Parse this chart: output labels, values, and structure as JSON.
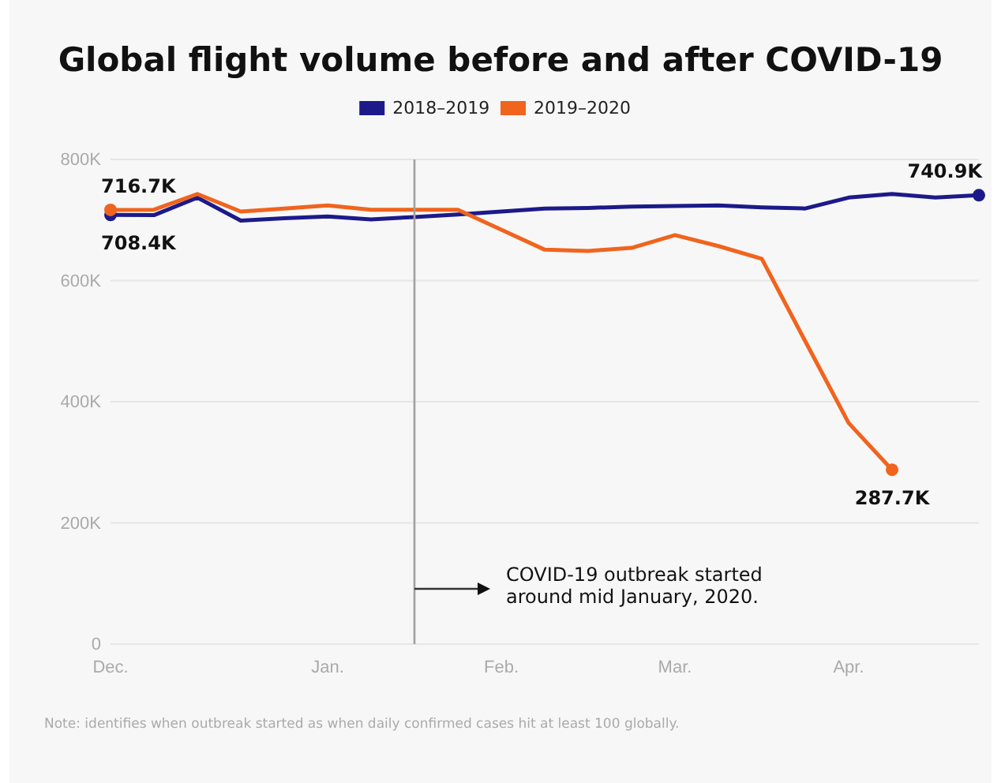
{
  "chart_data": {
    "type": "line",
    "title": "Global flight volume before and after COVID-19",
    "categories": [
      "Dec.",
      null,
      null,
      null,
      null,
      "Jan.",
      null,
      null,
      null,
      "Feb.",
      null,
      null,
      null,
      "Mar.",
      null,
      null,
      null,
      "Apr.",
      null,
      null,
      null
    ],
    "series": [
      {
        "name": "2018–2019",
        "color": "#1c1a8a",
        "values": [
          708400,
          708000,
          737000,
          699000,
          703000,
          706000,
          701000,
          705000,
          709000,
          714000,
          719000,
          720000,
          722000,
          723000,
          724000,
          721000,
          719000,
          737000,
          743000,
          737000,
          740900
        ],
        "value_labels": [
          "708.4K",
          null,
          null,
          null,
          null,
          null,
          null,
          null,
          null,
          null,
          null,
          null,
          null,
          null,
          null,
          null,
          null,
          null,
          null,
          null,
          "740.9K"
        ]
      },
      {
        "name": "2019–2020",
        "color": "#f0641e",
        "values": [
          716700,
          717000,
          743000,
          714000,
          719000,
          724000,
          717000,
          717000,
          717000,
          684000,
          651000,
          649000,
          654000,
          675000,
          657000,
          636000,
          500000,
          365000,
          287700,
          null,
          null
        ],
        "value_labels": [
          "716.7K",
          null,
          null,
          null,
          null,
          null,
          null,
          null,
          null,
          null,
          null,
          null,
          null,
          null,
          null,
          null,
          null,
          null,
          "287.7K",
          null,
          null
        ]
      }
    ],
    "ylim": [
      0,
      800000
    ],
    "yticks": [
      {
        "value": 0,
        "label": "0"
      },
      {
        "value": 200000,
        "label": "200K"
      },
      {
        "value": 400000,
        "label": "400K"
      },
      {
        "value": 600000,
        "label": "600K"
      },
      {
        "value": 800000,
        "label": "800K"
      }
    ],
    "grid": "y",
    "legend": "top",
    "annotations": [
      "COVID-19 outbreak started around mid January, 2020.",
      "Note: identifies when outbreak started as when daily confirmed cases hit at least 100 globally."
    ]
  }
}
